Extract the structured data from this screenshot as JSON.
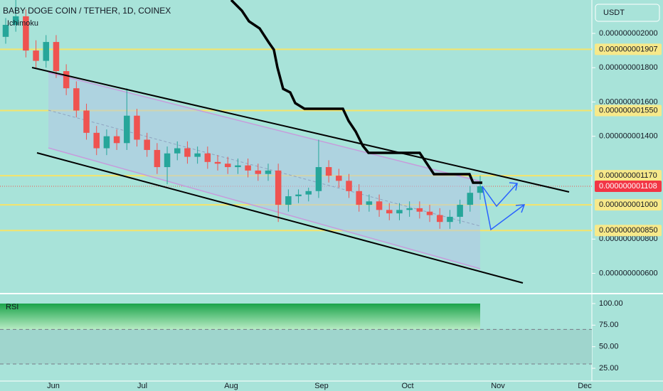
{
  "chart_data": {
    "type": "candlestick",
    "title": "BABY DOGE COIN / TETHER, 1D, COINEX",
    "indicator": "Ichimoku",
    "currency": "USDT",
    "ylim": [
      4.86e-10,
      2.195e-09
    ],
    "yticks": [
      {
        "value": 2e-09,
        "label": "0.000000002000"
      },
      {
        "value": 1.8e-09,
        "label": "0.000000001800"
      },
      {
        "value": 1.6e-09,
        "label": "0.000000001600"
      },
      {
        "value": 1.4e-09,
        "label": "0.000000001400"
      },
      {
        "value": 8e-10,
        "label": "0.000000000800"
      },
      {
        "value": 6e-10,
        "label": "0.000000000600"
      }
    ],
    "levels": [
      {
        "value": 1.907e-09,
        "label": "0.000000001907"
      },
      {
        "value": 1.55e-09,
        "label": "0.000000001550"
      },
      {
        "value": 1.17e-09,
        "label": "0.000000001170"
      },
      {
        "value": 1e-09,
        "label": "0.000000001000"
      },
      {
        "value": 8.5e-10,
        "label": "0.000000000850"
      }
    ],
    "last_price": {
      "value": 1.108e-09,
      "label": "0.000000001108"
    },
    "xticks": [
      "Jun",
      "Jul",
      "Aug",
      "Sep",
      "Oct",
      "Nov",
      "Dec"
    ],
    "up_color": "#26a69a",
    "down_color": "#ef5350",
    "open": [
      1.98e-09,
      2.05e-09,
      2.1e-09,
      1.9e-09,
      1.84e-09,
      1.95e-09,
      1.78e-09,
      1.68e-09,
      1.55e-09,
      1.42e-09,
      1.33e-09,
      1.4e-09,
      1.36e-09,
      1.52e-09,
      1.38e-09,
      1.32e-09,
      1.22e-09,
      1.3e-09,
      1.33e-09,
      1.28e-09,
      1.3e-09,
      1.25e-09,
      1.24e-09,
      1.22e-09,
      1.23e-09,
      1.2e-09,
      1.18e-09,
      1.2e-09,
      1e-09,
      1.05e-09,
      1.06e-09,
      1.08e-09,
      1.22e-09,
      1.17e-09,
      1.14e-09,
      1.08e-09,
      1e-09,
      1.02e-09,
      9.7e-10,
      9.5e-10,
      9.7e-10,
      9.8e-10,
      9.6e-10,
      9.4e-10,
      9e-10,
      9.3e-10,
      1e-09,
      1.07e-09
    ],
    "high": [
      2.09e-09,
      2.2e-09,
      2.14e-09,
      1.96e-09,
      1.99e-09,
      1.99e-09,
      1.82e-09,
      1.72e-09,
      1.59e-09,
      1.46e-09,
      1.44e-09,
      1.44e-09,
      1.68e-09,
      1.56e-09,
      1.42e-09,
      1.36e-09,
      1.34e-09,
      1.37e-09,
      1.37e-09,
      1.34e-09,
      1.34e-09,
      1.29e-09,
      1.28e-09,
      1.27e-09,
      1.27e-09,
      1.24e-09,
      1.24e-09,
      1.24e-09,
      1.09e-09,
      1.09e-09,
      1.1e-09,
      1.38e-09,
      1.26e-09,
      1.21e-09,
      1.18e-09,
      1.12e-09,
      1.06e-09,
      1.06e-09,
      1.01e-09,
      1.01e-09,
      1.02e-09,
      1.02e-09,
      1e-09,
      9.8e-10,
      9.7e-10,
      1.03e-09,
      1.11e-09,
      1.17e-09
    ],
    "low": [
      1.94e-09,
      2.01e-09,
      1.86e-09,
      1.8e-09,
      1.8e-09,
      1.74e-09,
      1.64e-09,
      1.51e-09,
      1.38e-09,
      1.29e-09,
      1.29e-09,
      1.32e-09,
      1.32e-09,
      1.34e-09,
      1.28e-09,
      1.18e-09,
      1.12e-09,
      1.26e-09,
      1.24e-09,
      1.24e-09,
      1.21e-09,
      1.2e-09,
      1.18e-09,
      1.18e-09,
      1.16e-09,
      1.14e-09,
      1.14e-09,
      9e-10,
      9.6e-10,
      1.01e-09,
      1.02e-09,
      1.04e-09,
      1.13e-09,
      1.1e-09,
      1.04e-09,
      9.6e-10,
      9.6e-10,
      9.3e-10,
      9.1e-10,
      9.1e-10,
      9.3e-10,
      9.2e-10,
      9e-10,
      8.6e-10,
      8.6e-10,
      8.9e-10,
      9.6e-10,
      1.03e-09
    ],
    "close": [
      2.05e-09,
      2.1e-09,
      1.9e-09,
      1.84e-09,
      1.95e-09,
      1.78e-09,
      1.68e-09,
      1.55e-09,
      1.42e-09,
      1.33e-09,
      1.4e-09,
      1.36e-09,
      1.52e-09,
      1.38e-09,
      1.32e-09,
      1.22e-09,
      1.3e-09,
      1.33e-09,
      1.28e-09,
      1.3e-09,
      1.25e-09,
      1.24e-09,
      1.22e-09,
      1.23e-09,
      1.2e-09,
      1.18e-09,
      1.2e-09,
      1e-09,
      1.05e-09,
      1.06e-09,
      1.08e-09,
      1.22e-09,
      1.17e-09,
      1.14e-09,
      1.08e-09,
      1e-09,
      1.02e-09,
      9.7e-10,
      9.5e-10,
      9.7e-10,
      9.8e-10,
      9.6e-10,
      9.4e-10,
      9e-10,
      9.3e-10,
      1e-09,
      1.07e-09,
      1.108e-09
    ],
    "rsi": {
      "title": "RSI",
      "ylim": [
        10.2,
        110.7
      ],
      "yticks": [
        {
          "value": 100,
          "label": "100.00"
        },
        {
          "value": 75,
          "label": "75.00"
        },
        {
          "value": 50,
          "label": "50.00"
        },
        {
          "value": 25,
          "label": "25.00"
        }
      ],
      "bands": [
        70,
        30
      ]
    }
  }
}
